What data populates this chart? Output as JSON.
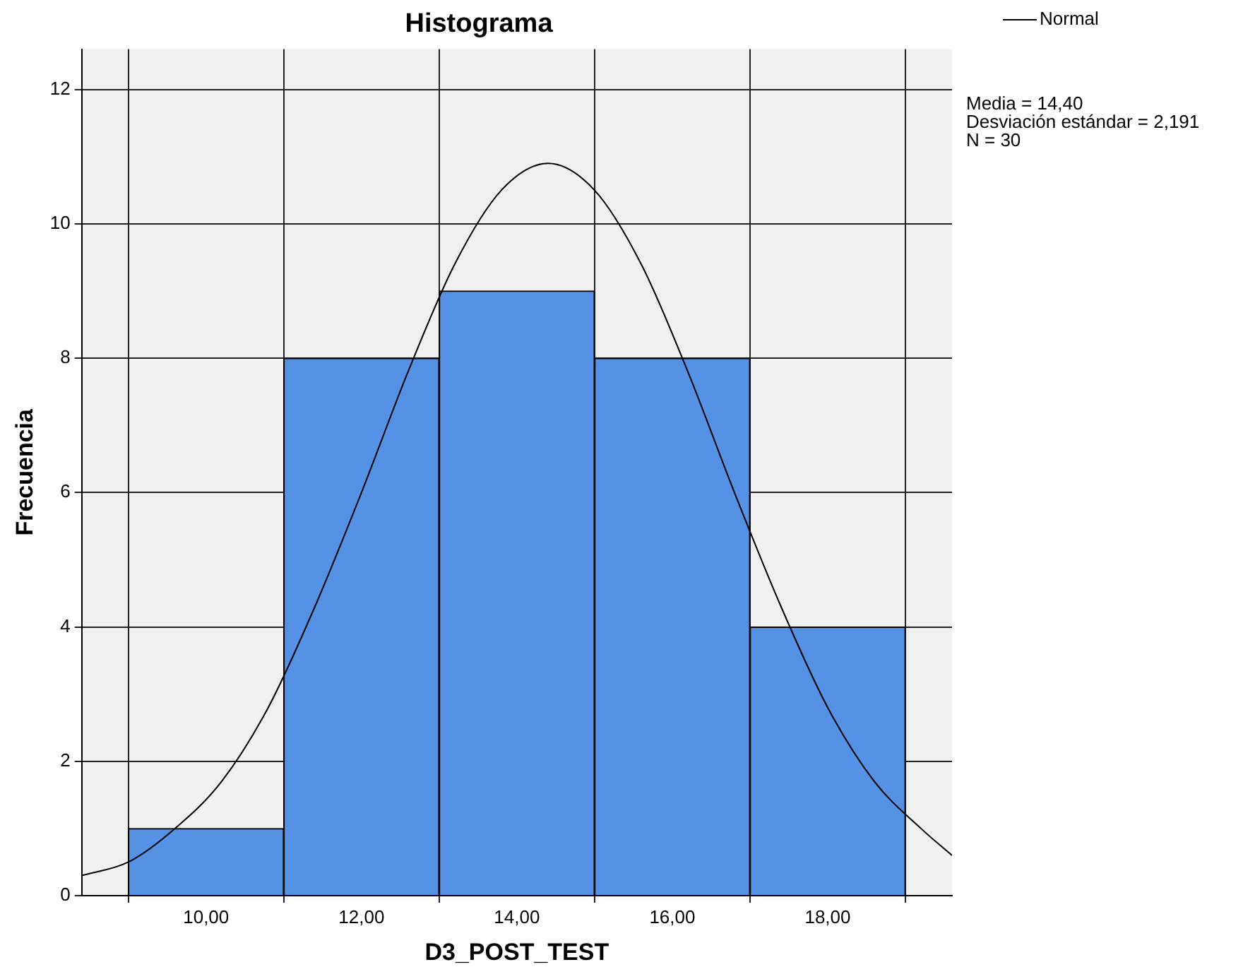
{
  "chart_data": {
    "type": "histogram",
    "title": "Histograma",
    "xlabel": "D3_POST_TEST",
    "ylabel": "Frecuencia",
    "bins": [
      9,
      11,
      13,
      15,
      17,
      19
    ],
    "values": [
      1,
      8,
      9,
      8,
      4
    ],
    "color": "#5592e6",
    "series": [
      {
        "name": "Normal",
        "type": "line",
        "color": "#000000",
        "marker": "none",
        "x": [
          8.4,
          9.0,
          9.6,
          10.2,
          10.8,
          11.4,
          12.0,
          12.6,
          13.2,
          13.8,
          14.4,
          15.0,
          15.6,
          16.2,
          16.8,
          17.4,
          18.0,
          18.6,
          19.2,
          19.6
        ],
        "values": [
          0.3,
          0.5,
          1.0,
          1.7,
          2.8,
          4.3,
          6.0,
          7.8,
          9.4,
          10.5,
          10.9,
          10.5,
          9.4,
          7.8,
          6.0,
          4.3,
          2.8,
          1.7,
          1.0,
          0.6
        ]
      }
    ],
    "xlim": [
      8.4,
      19.6
    ],
    "xticks": [
      {
        "value": 10,
        "label": "10,00"
      },
      {
        "value": 12,
        "label": "12,00"
      },
      {
        "value": 14,
        "label": "14,00"
      },
      {
        "value": 16,
        "label": "16,00"
      },
      {
        "value": 18,
        "label": "18,00"
      }
    ],
    "ylim": [
      0,
      12.6
    ],
    "yticks": [
      0,
      2,
      4,
      6,
      8,
      10,
      12
    ],
    "grid": true,
    "legend": "top right",
    "annotations": [
      "Media = 14,40",
      "Desviación estándar = 2,191",
      "N = 30"
    ]
  }
}
